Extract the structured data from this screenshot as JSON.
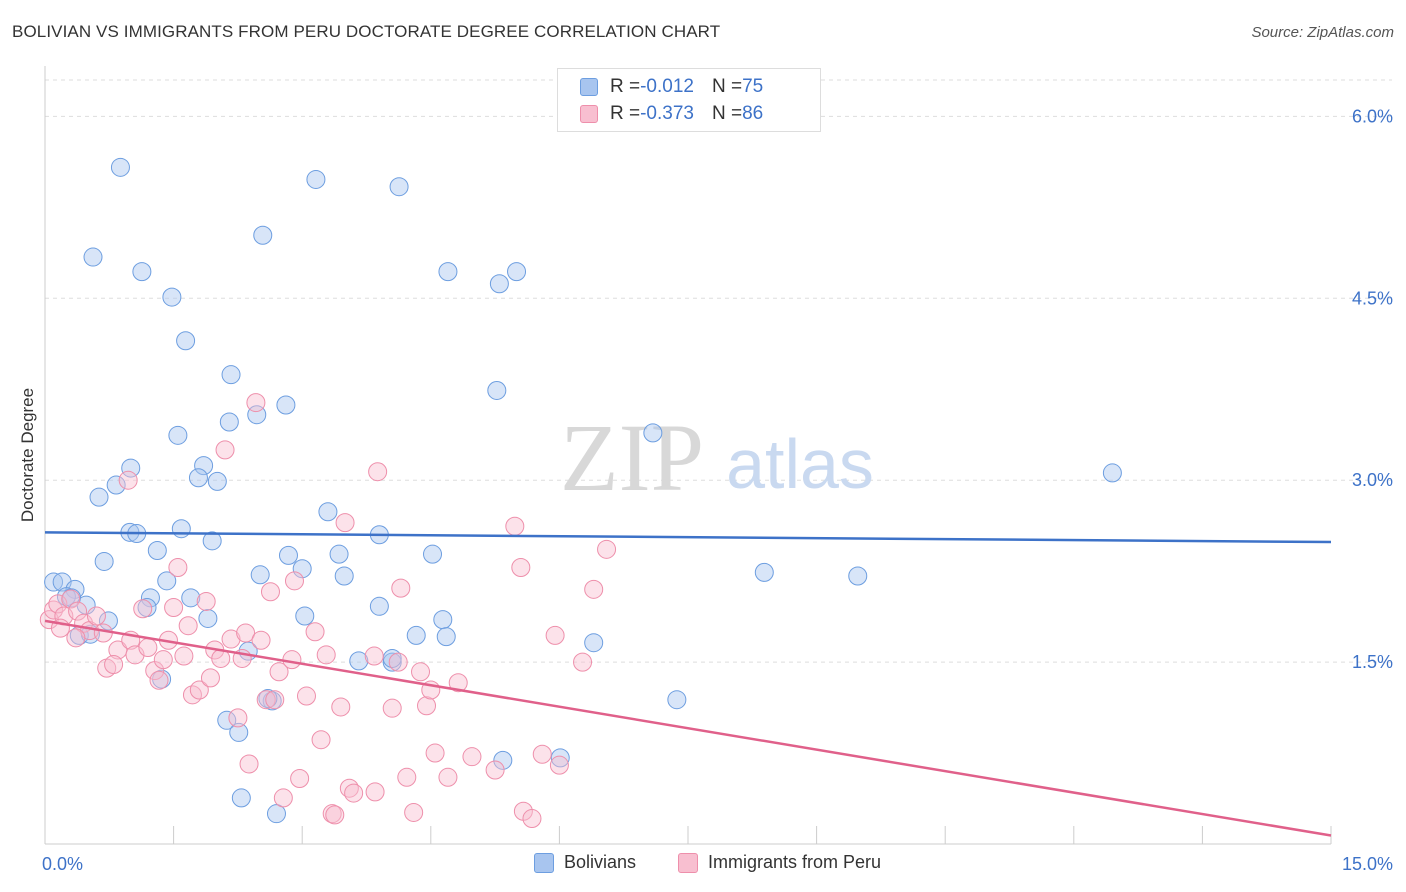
{
  "header": {
    "title": "BOLIVIAN VS IMMIGRANTS FROM PERU DOCTORATE DEGREE CORRELATION CHART",
    "source": "Source: ZipAtlas.com"
  },
  "watermark": {
    "zip": "ZIP",
    "atlas": "atlas"
  },
  "legend_top": [
    {
      "r_label": "R = ",
      "r_value": "-0.012",
      "n_label": "N = ",
      "n_value": "75",
      "color": "#a8c5ef",
      "border": "#6d9ee0"
    },
    {
      "r_label": "R = ",
      "r_value": "-0.373",
      "n_label": "N = ",
      "n_value": "86",
      "color": "#f8bfd0",
      "border": "#ee8fab"
    }
  ],
  "legend_bottom": [
    {
      "label": "Bolivians",
      "color": "#a8c5ef",
      "border": "#6d9ee0"
    },
    {
      "label": "Immigrants from Peru",
      "color": "#f8bfd0",
      "border": "#ee8fab"
    }
  ],
  "chart_data": {
    "type": "scatter",
    "title": "BOLIVIAN VS IMMIGRANTS FROM PERU DOCTORATE DEGREE CORRELATION CHART",
    "xlabel": "",
    "ylabel": "Doctorate Degree",
    "xlim": [
      0,
      15
    ],
    "ylim": [
      0,
      6.3
    ],
    "x_tick_labels": [
      "0.0%",
      "15.0%"
    ],
    "y_ticks": [
      1.5,
      3.0,
      4.5,
      6.0
    ],
    "y_tick_labels": [
      "1.5%",
      "3.0%",
      "4.5%",
      "6.0%"
    ],
    "grid": true,
    "legend_position": "top-center",
    "colors": {
      "bolivians": "#3d72c8",
      "peru": "#e0608a",
      "axis_labels": "#3d72c8"
    },
    "series": [
      {
        "name": "Bolivians",
        "r": -0.012,
        "n": 75,
        "trend": [
          [
            0,
            2.57
          ],
          [
            15,
            2.49
          ]
        ],
        "points": [
          [
            0.88,
            5.58
          ],
          [
            3.16,
            5.48
          ],
          [
            4.13,
            5.42
          ],
          [
            0.56,
            4.84
          ],
          [
            1.13,
            4.72
          ],
          [
            2.54,
            5.02
          ],
          [
            4.7,
            4.72
          ],
          [
            5.3,
            4.62
          ],
          [
            5.5,
            4.72
          ],
          [
            1.48,
            4.51
          ],
          [
            1.64,
            4.15
          ],
          [
            2.17,
            3.87
          ],
          [
            2.81,
            3.62
          ],
          [
            5.27,
            3.74
          ],
          [
            2.15,
            3.48
          ],
          [
            2.47,
            3.54
          ],
          [
            1.55,
            3.37
          ],
          [
            7.09,
            3.39
          ],
          [
            12.45,
            3.06
          ],
          [
            1.0,
            3.1
          ],
          [
            1.85,
            3.12
          ],
          [
            1.79,
            3.02
          ],
          [
            0.83,
            2.96
          ],
          [
            2.01,
            2.99
          ],
          [
            0.63,
            2.86
          ],
          [
            0.99,
            2.57
          ],
          [
            1.07,
            2.56
          ],
          [
            1.59,
            2.6
          ],
          [
            3.3,
            2.74
          ],
          [
            3.9,
            2.55
          ],
          [
            1.95,
            2.5
          ],
          [
            1.31,
            2.42
          ],
          [
            0.69,
            2.33
          ],
          [
            2.84,
            2.38
          ],
          [
            3.43,
            2.39
          ],
          [
            4.52,
            2.39
          ],
          [
            3.0,
            2.27
          ],
          [
            2.51,
            2.22
          ],
          [
            3.49,
            2.21
          ],
          [
            8.39,
            2.24
          ],
          [
            9.48,
            2.21
          ],
          [
            0.1,
            2.16
          ],
          [
            0.2,
            2.16
          ],
          [
            1.42,
            2.17
          ],
          [
            0.35,
            2.1
          ],
          [
            0.25,
            2.04
          ],
          [
            0.31,
            2.03
          ],
          [
            1.23,
            2.03
          ],
          [
            1.7,
            2.03
          ],
          [
            0.48,
            1.97
          ],
          [
            1.19,
            1.95
          ],
          [
            3.9,
            1.96
          ],
          [
            0.74,
            1.84
          ],
          [
            1.9,
            1.86
          ],
          [
            3.03,
            1.88
          ],
          [
            4.64,
            1.85
          ],
          [
            0.4,
            1.72
          ],
          [
            0.53,
            1.73
          ],
          [
            4.33,
            1.72
          ],
          [
            4.68,
            1.71
          ],
          [
            6.4,
            1.66
          ],
          [
            2.37,
            1.59
          ],
          [
            1.36,
            1.36
          ],
          [
            3.66,
            1.51
          ],
          [
            4.05,
            1.5
          ],
          [
            4.05,
            1.53
          ],
          [
            7.37,
            1.19
          ],
          [
            2.65,
            1.18
          ],
          [
            2.6,
            1.2
          ],
          [
            2.12,
            1.02
          ],
          [
            2.26,
            0.92
          ],
          [
            5.34,
            0.69
          ],
          [
            6.01,
            0.71
          ],
          [
            2.29,
            0.38
          ],
          [
            2.7,
            0.25
          ]
        ]
      },
      {
        "name": "Immigrants from Peru",
        "r": -0.373,
        "n": 86,
        "trend": [
          [
            0,
            1.84
          ],
          [
            15,
            0.07
          ]
        ],
        "points": [
          [
            0.05,
            1.85
          ],
          [
            0.1,
            1.93
          ],
          [
            0.15,
            1.98
          ],
          [
            0.22,
            1.88
          ],
          [
            0.3,
            2.02
          ],
          [
            0.18,
            1.78
          ],
          [
            0.38,
            1.92
          ],
          [
            0.45,
            1.82
          ],
          [
            0.52,
            1.76
          ],
          [
            0.36,
            1.7
          ],
          [
            0.6,
            1.88
          ],
          [
            0.68,
            1.74
          ],
          [
            0.72,
            1.45
          ],
          [
            0.85,
            1.6
          ],
          [
            0.8,
            1.48
          ],
          [
            0.97,
            3.0
          ],
          [
            1.0,
            1.68
          ],
          [
            1.05,
            1.56
          ],
          [
            1.14,
            1.94
          ],
          [
            1.2,
            1.62
          ],
          [
            1.28,
            1.43
          ],
          [
            1.33,
            1.35
          ],
          [
            1.38,
            1.52
          ],
          [
            1.44,
            1.68
          ],
          [
            1.5,
            1.95
          ],
          [
            1.55,
            2.28
          ],
          [
            1.62,
            1.55
          ],
          [
            1.67,
            1.8
          ],
          [
            1.72,
            1.23
          ],
          [
            1.8,
            1.27
          ],
          [
            1.88,
            2.0
          ],
          [
            1.93,
            1.37
          ],
          [
            1.98,
            1.6
          ],
          [
            2.05,
            1.53
          ],
          [
            2.1,
            3.25
          ],
          [
            2.17,
            1.69
          ],
          [
            2.25,
            1.04
          ],
          [
            2.3,
            1.53
          ],
          [
            2.34,
            1.74
          ],
          [
            2.38,
            0.66
          ],
          [
            2.46,
            3.64
          ],
          [
            2.52,
            1.68
          ],
          [
            2.58,
            1.19
          ],
          [
            2.63,
            2.08
          ],
          [
            2.68,
            1.19
          ],
          [
            2.73,
            1.42
          ],
          [
            2.78,
            0.38
          ],
          [
            2.88,
            1.52
          ],
          [
            2.91,
            2.17
          ],
          [
            2.97,
            0.54
          ],
          [
            3.05,
            1.22
          ],
          [
            3.15,
            1.75
          ],
          [
            3.22,
            0.86
          ],
          [
            3.28,
            1.56
          ],
          [
            3.35,
            0.25
          ],
          [
            3.38,
            0.24
          ],
          [
            3.45,
            1.13
          ],
          [
            3.5,
            2.65
          ],
          [
            3.55,
            0.46
          ],
          [
            3.6,
            0.42
          ],
          [
            3.84,
            1.55
          ],
          [
            3.85,
            0.43
          ],
          [
            3.88,
            3.07
          ],
          [
            4.05,
            1.12
          ],
          [
            4.12,
            1.5
          ],
          [
            4.15,
            2.11
          ],
          [
            4.22,
            0.55
          ],
          [
            4.3,
            0.26
          ],
          [
            4.38,
            1.42
          ],
          [
            4.45,
            1.14
          ],
          [
            4.5,
            1.27
          ],
          [
            4.55,
            0.75
          ],
          [
            4.7,
            0.55
          ],
          [
            4.82,
            1.33
          ],
          [
            4.98,
            0.72
          ],
          [
            5.25,
            0.61
          ],
          [
            5.48,
            2.62
          ],
          [
            5.55,
            2.28
          ],
          [
            5.58,
            0.27
          ],
          [
            5.68,
            0.21
          ],
          [
            5.8,
            0.74
          ],
          [
            5.95,
            1.72
          ],
          [
            6.0,
            0.65
          ],
          [
            6.27,
            1.5
          ],
          [
            6.4,
            2.1
          ],
          [
            6.55,
            2.43
          ]
        ]
      }
    ]
  }
}
